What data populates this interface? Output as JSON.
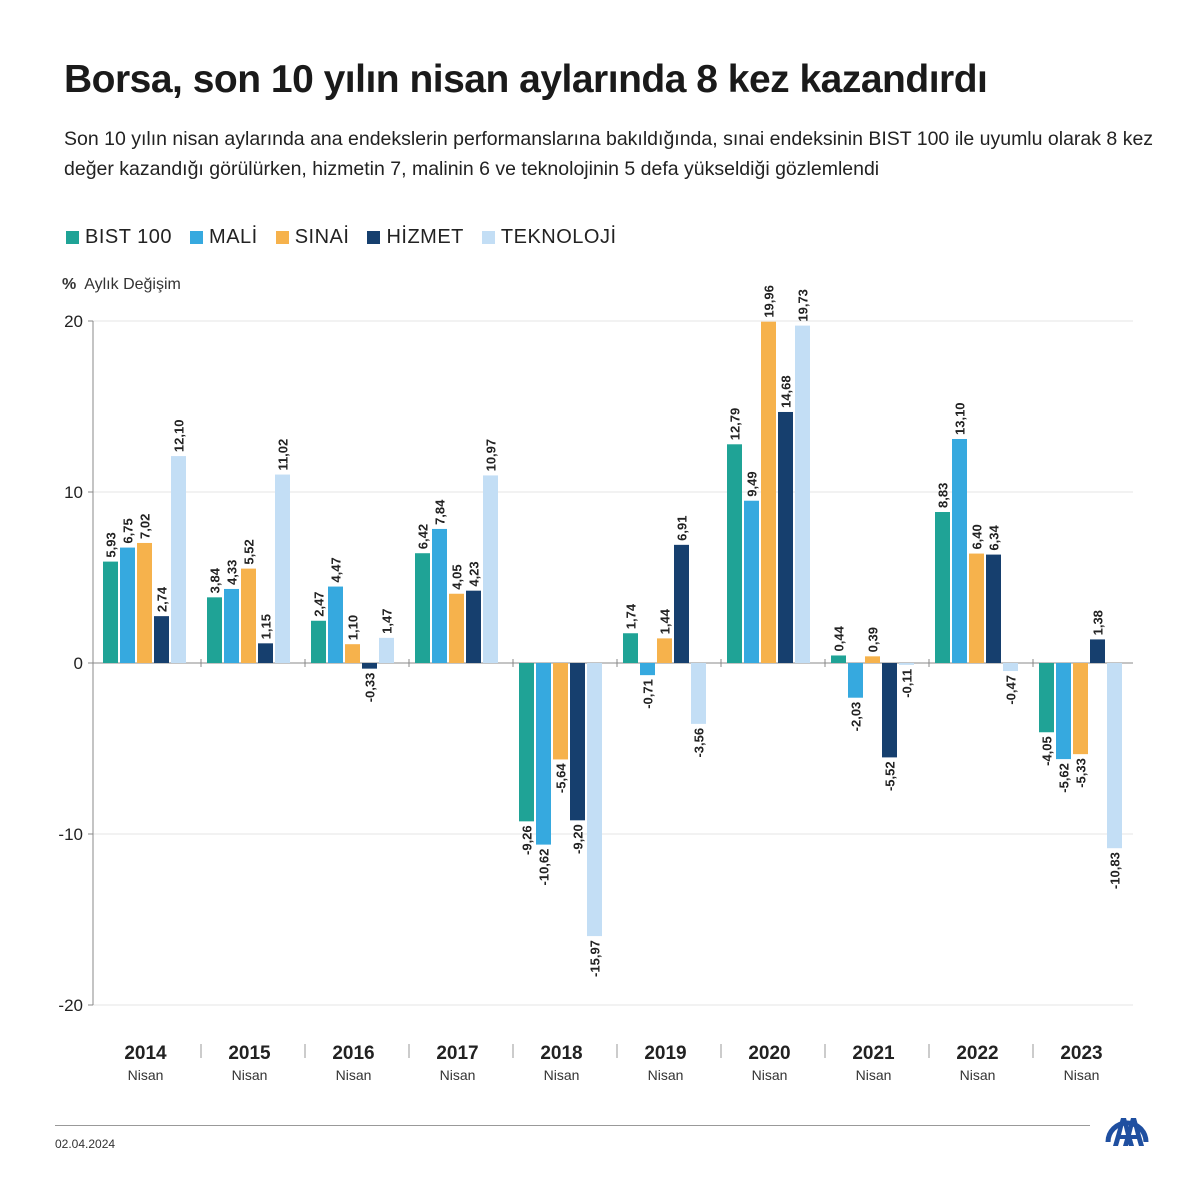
{
  "header": {
    "title": "Borsa, son 10 yılın nisan aylarında 8 kez kazandırdı",
    "subtitle": "Son 10 yılın nisan aylarında ana endekslerin performanslarına bakıldığında, sınai endeksinin BIST 100 ile uyumlu olarak 8 kez değer kazandığı görülürken, hizmetin 7, malinin 6 ve teknolojinin 5 defa yükseldiği gözlemlendi"
  },
  "unit": {
    "symbol": "%",
    "label": "Aylık Değişim"
  },
  "footer": {
    "date": "02.04.2024",
    "logo": "AA"
  },
  "chart_data": {
    "type": "bar",
    "title": "Borsa, son 10 yılın nisan aylarında 8 kez kazandırdı",
    "ylabel": "% Aylık Değişim",
    "ylim": [
      -20,
      20
    ],
    "yticks": [
      20,
      10,
      0,
      -10,
      -20
    ],
    "grid": true,
    "legend_position": "top-left",
    "categories": [
      "2014",
      "2015",
      "2016",
      "2017",
      "2018",
      "2019",
      "2020",
      "2021",
      "2022",
      "2023"
    ],
    "category_sublabel": "Nisan",
    "series": [
      {
        "name": "BIST 100",
        "color": "#1fa396",
        "values": [
          5.93,
          3.84,
          2.47,
          6.42,
          -9.26,
          1.74,
          12.79,
          0.44,
          8.83,
          -4.05
        ]
      },
      {
        "name": "MALİ",
        "color": "#36a9df",
        "values": [
          6.75,
          4.33,
          4.47,
          7.84,
          -10.62,
          -0.71,
          9.49,
          -2.03,
          13.1,
          -5.62
        ]
      },
      {
        "name": "SINAİ",
        "color": "#f6b24c",
        "values": [
          7.02,
          5.52,
          1.1,
          4.05,
          -5.64,
          1.44,
          19.96,
          0.39,
          6.4,
          -5.33
        ]
      },
      {
        "name": "HİZMET",
        "color": "#163f6e",
        "values": [
          2.74,
          1.15,
          -0.33,
          4.23,
          -9.2,
          6.91,
          14.68,
          -5.52,
          6.34,
          1.38
        ]
      },
      {
        "name": "TEKNOLOJİ",
        "color": "#c3def5",
        "values": [
          12.1,
          11.02,
          1.47,
          10.97,
          -15.97,
          -3.56,
          19.73,
          -0.11,
          -0.47,
          -10.83
        ]
      }
    ]
  }
}
